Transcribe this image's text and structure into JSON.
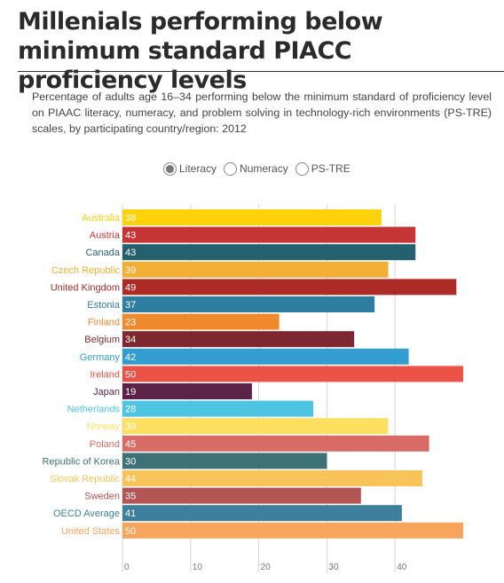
{
  "title": "Millenials performing below minimum standard PIACC proficiency levels",
  "subtitle": "Percentage of adults age 16–34 performing below the minimum standard of proficiency level on PIAAC literacy, numeracy, and problem solving in technology-rich environments (PS-TRE) scales, by participating country/region: 2012",
  "options": [
    {
      "label": "Literacy",
      "selected": true
    },
    {
      "label": "Numeracy",
      "selected": false
    },
    {
      "label": "PS-TRE",
      "selected": false
    }
  ],
  "chart_data": {
    "type": "bar",
    "orientation": "horizontal",
    "title": "",
    "xlabel": "",
    "ylabel": "",
    "xlim": [
      0,
      50
    ],
    "xticks": [
      0,
      10,
      20,
      30,
      40
    ],
    "grid": true,
    "legend": "none",
    "categories": [
      "Australia",
      "Austria",
      "Canada",
      "Czech Republic",
      "United Kingdom",
      "Estonia",
      "Finland",
      "Belgium",
      "Germany",
      "Ireland",
      "Japan",
      "Netherlands",
      "Norway",
      "Poland",
      "Republic of Korea",
      "Slovak Republic",
      "Sweden",
      "OECD Average",
      "United States"
    ],
    "values": [
      38,
      43,
      43,
      39,
      49,
      37,
      23,
      34,
      42,
      50,
      19,
      28,
      39,
      45,
      30,
      44,
      35,
      41,
      50
    ],
    "colors": [
      "#fdd20b",
      "#c53535",
      "#25606e",
      "#f2ae35",
      "#ad2b26",
      "#2f7da0",
      "#ef8a2c",
      "#7d2830",
      "#339dd0",
      "#ea5346",
      "#5a2347",
      "#4ec4e3",
      "#fde05f",
      "#d96b66",
      "#3c7175",
      "#f8c45a",
      "#b45555",
      "#3e7f9c",
      "#f7a45d"
    ]
  }
}
